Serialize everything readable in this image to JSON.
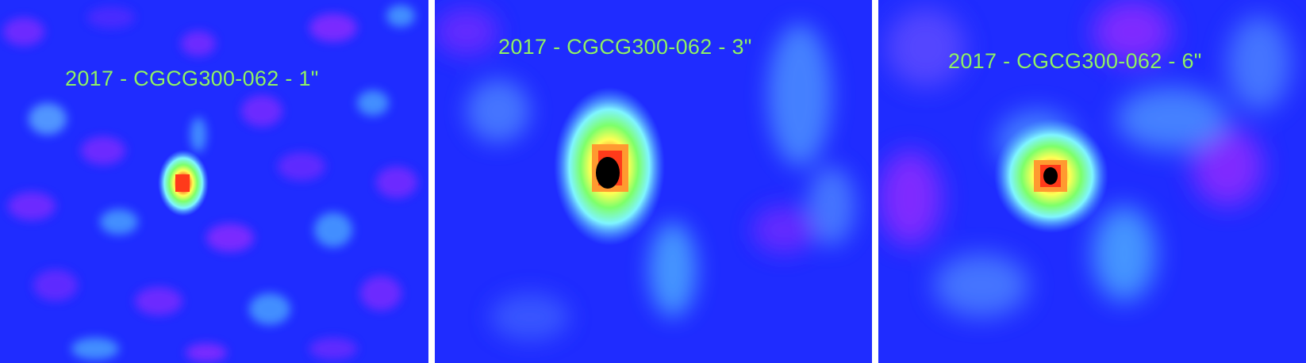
{
  "panels": [
    {
      "caption": "2017 - CGCG300-062 - 1\"",
      "colormap": [
        "#1e2bff",
        "#6a2bff",
        "#4aa0ff",
        "#7ff5ff",
        "#7dff6a",
        "#ffff55",
        "#ff9a30",
        "#ff3a1a",
        "#000000"
      ]
    },
    {
      "caption": "2017 - CGCG300-062 - 3\"",
      "colormap": [
        "#1e2bff",
        "#6a2bff",
        "#4aa0ff",
        "#7ff5ff",
        "#7dff6a",
        "#ffff55",
        "#ff9a30",
        "#ff3a1a",
        "#000000"
      ]
    },
    {
      "caption": "2017 - CGCG300-062 - 6\"",
      "colormap": [
        "#1e2bff",
        "#6a2bff",
        "#4aa0ff",
        "#7ff5ff",
        "#7dff6a",
        "#ffff55",
        "#ff9a30",
        "#ff3a1a",
        "#000000"
      ]
    }
  ]
}
